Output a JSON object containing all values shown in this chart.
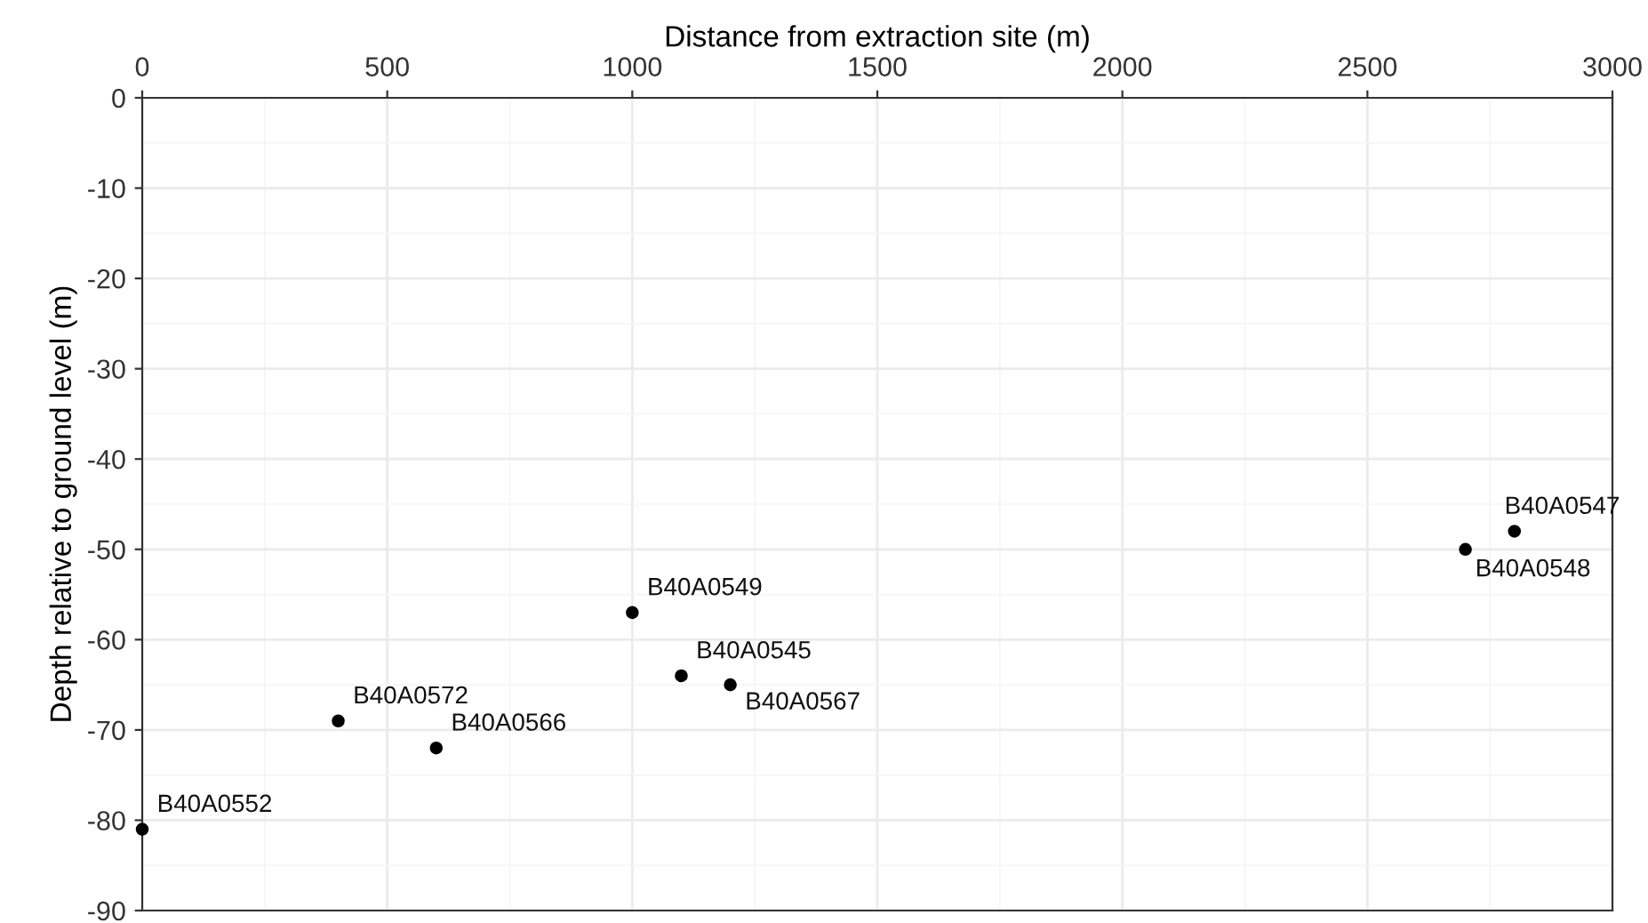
{
  "chart_data": {
    "type": "scatter",
    "xlabel": "Distance from extraction site (m)",
    "ylabel": "Depth relative to ground level (m)",
    "x": [
      0,
      400,
      600,
      1000,
      1100,
      1200,
      2700,
      2800
    ],
    "values": [
      -81,
      -69,
      -72,
      -57,
      -64,
      -65,
      -50,
      -48
    ],
    "color": "#000000",
    "marker": "circle",
    "grid": true,
    "xlim": [
      0,
      3000
    ],
    "xticks": [
      0,
      500,
      1000,
      1500,
      2000,
      2500,
      3000
    ],
    "ylim": [
      -90,
      0
    ],
    "yticks": [
      0,
      -10,
      -20,
      -30,
      -40,
      -50,
      -60,
      -70,
      -80,
      -90
    ],
    "annotations": [
      {
        "text": "B40A0552",
        "x": 0,
        "y": -81
      },
      {
        "text": "B40A0572",
        "x": 400,
        "y": -69
      },
      {
        "text": "B40A0566",
        "x": 600,
        "y": -72
      },
      {
        "text": "B40A0549",
        "x": 1000,
        "y": -57
      },
      {
        "text": "B40A0545",
        "x": 1100,
        "y": -64
      },
      {
        "text": "B40A0567",
        "x": 1200,
        "y": -65
      },
      {
        "text": "B40A0548",
        "x": 2700,
        "y": -50
      },
      {
        "text": "B40A0547",
        "x": 2800,
        "y": -48
      }
    ]
  }
}
